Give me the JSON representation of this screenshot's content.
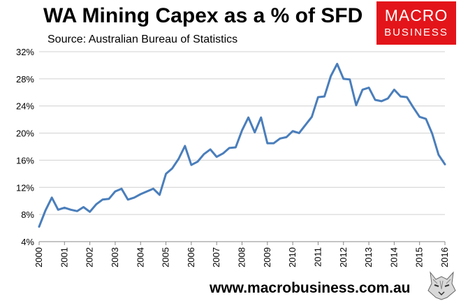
{
  "header": {
    "title": "WA Mining Capex as a % of SFD",
    "subtitle": "Source: Australian Bureau of Statistics"
  },
  "logo": {
    "line1": "MACRO",
    "line2": "BUSINESS",
    "color": "#e3151a"
  },
  "footer": {
    "url": "www.macrobusiness.com.au"
  },
  "chart_data": {
    "type": "line",
    "title": "WA Mining Capex as a % of SFD",
    "xlabel": "",
    "ylabel": "",
    "xlim": [
      2000,
      2016
    ],
    "ylim": [
      4,
      32
    ],
    "y_ticks": [
      4,
      8,
      12,
      16,
      20,
      24,
      28,
      32
    ],
    "y_tick_labels": [
      "4%",
      "8%",
      "12%",
      "16%",
      "20%",
      "24%",
      "28%",
      "32%"
    ],
    "x_ticks": [
      "2000",
      "2001",
      "2002",
      "2003",
      "2004",
      "2005",
      "2006",
      "2007",
      "2008",
      "2009",
      "2010",
      "2011",
      "2012",
      "2013",
      "2014",
      "2015",
      "2016"
    ],
    "grid": true,
    "legend": false,
    "series": [
      {
        "color": "#4a7ebb",
        "x": [
          2000.0,
          2000.25,
          2000.5,
          2000.75,
          2001.0,
          2001.25,
          2001.5,
          2001.75,
          2002.0,
          2002.25,
          2002.5,
          2002.75,
          2003.0,
          2003.25,
          2003.5,
          2003.75,
          2004.0,
          2004.25,
          2004.5,
          2004.75,
          2005.0,
          2005.25,
          2005.5,
          2005.75,
          2006.0,
          2006.25,
          2006.5,
          2006.75,
          2007.0,
          2007.25,
          2007.5,
          2007.75,
          2008.0,
          2008.25,
          2008.5,
          2008.75,
          2009.0,
          2009.25,
          2009.5,
          2009.75,
          2010.0,
          2010.25,
          2010.5,
          2010.75,
          2011.0,
          2011.25,
          2011.5,
          2011.75,
          2012.0,
          2012.25,
          2012.5,
          2012.75,
          2013.0,
          2013.25,
          2013.5,
          2013.75,
          2014.0,
          2014.25,
          2014.5,
          2014.75,
          2015.0,
          2015.25,
          2015.5,
          2015.75,
          2016.0
        ],
        "y": [
          6.2,
          8.6,
          10.5,
          8.7,
          9.0,
          8.7,
          8.5,
          9.1,
          8.4,
          9.5,
          10.2,
          10.3,
          11.4,
          11.8,
          10.2,
          10.5,
          11.0,
          11.4,
          11.8,
          10.9,
          14.0,
          14.8,
          16.2,
          18.1,
          15.3,
          15.8,
          16.9,
          17.6,
          16.5,
          17.0,
          17.8,
          17.9,
          20.4,
          22.3,
          20.1,
          22.3,
          18.5,
          18.5,
          19.2,
          19.4,
          20.3,
          20.0,
          21.2,
          22.4,
          25.3,
          25.4,
          28.4,
          30.2,
          28.0,
          27.9,
          24.1,
          26.4,
          26.7,
          24.9,
          24.7,
          25.1,
          26.4,
          25.4,
          25.3,
          23.8,
          22.4,
          22.1,
          19.9,
          16.8,
          15.4
        ]
      }
    ]
  }
}
